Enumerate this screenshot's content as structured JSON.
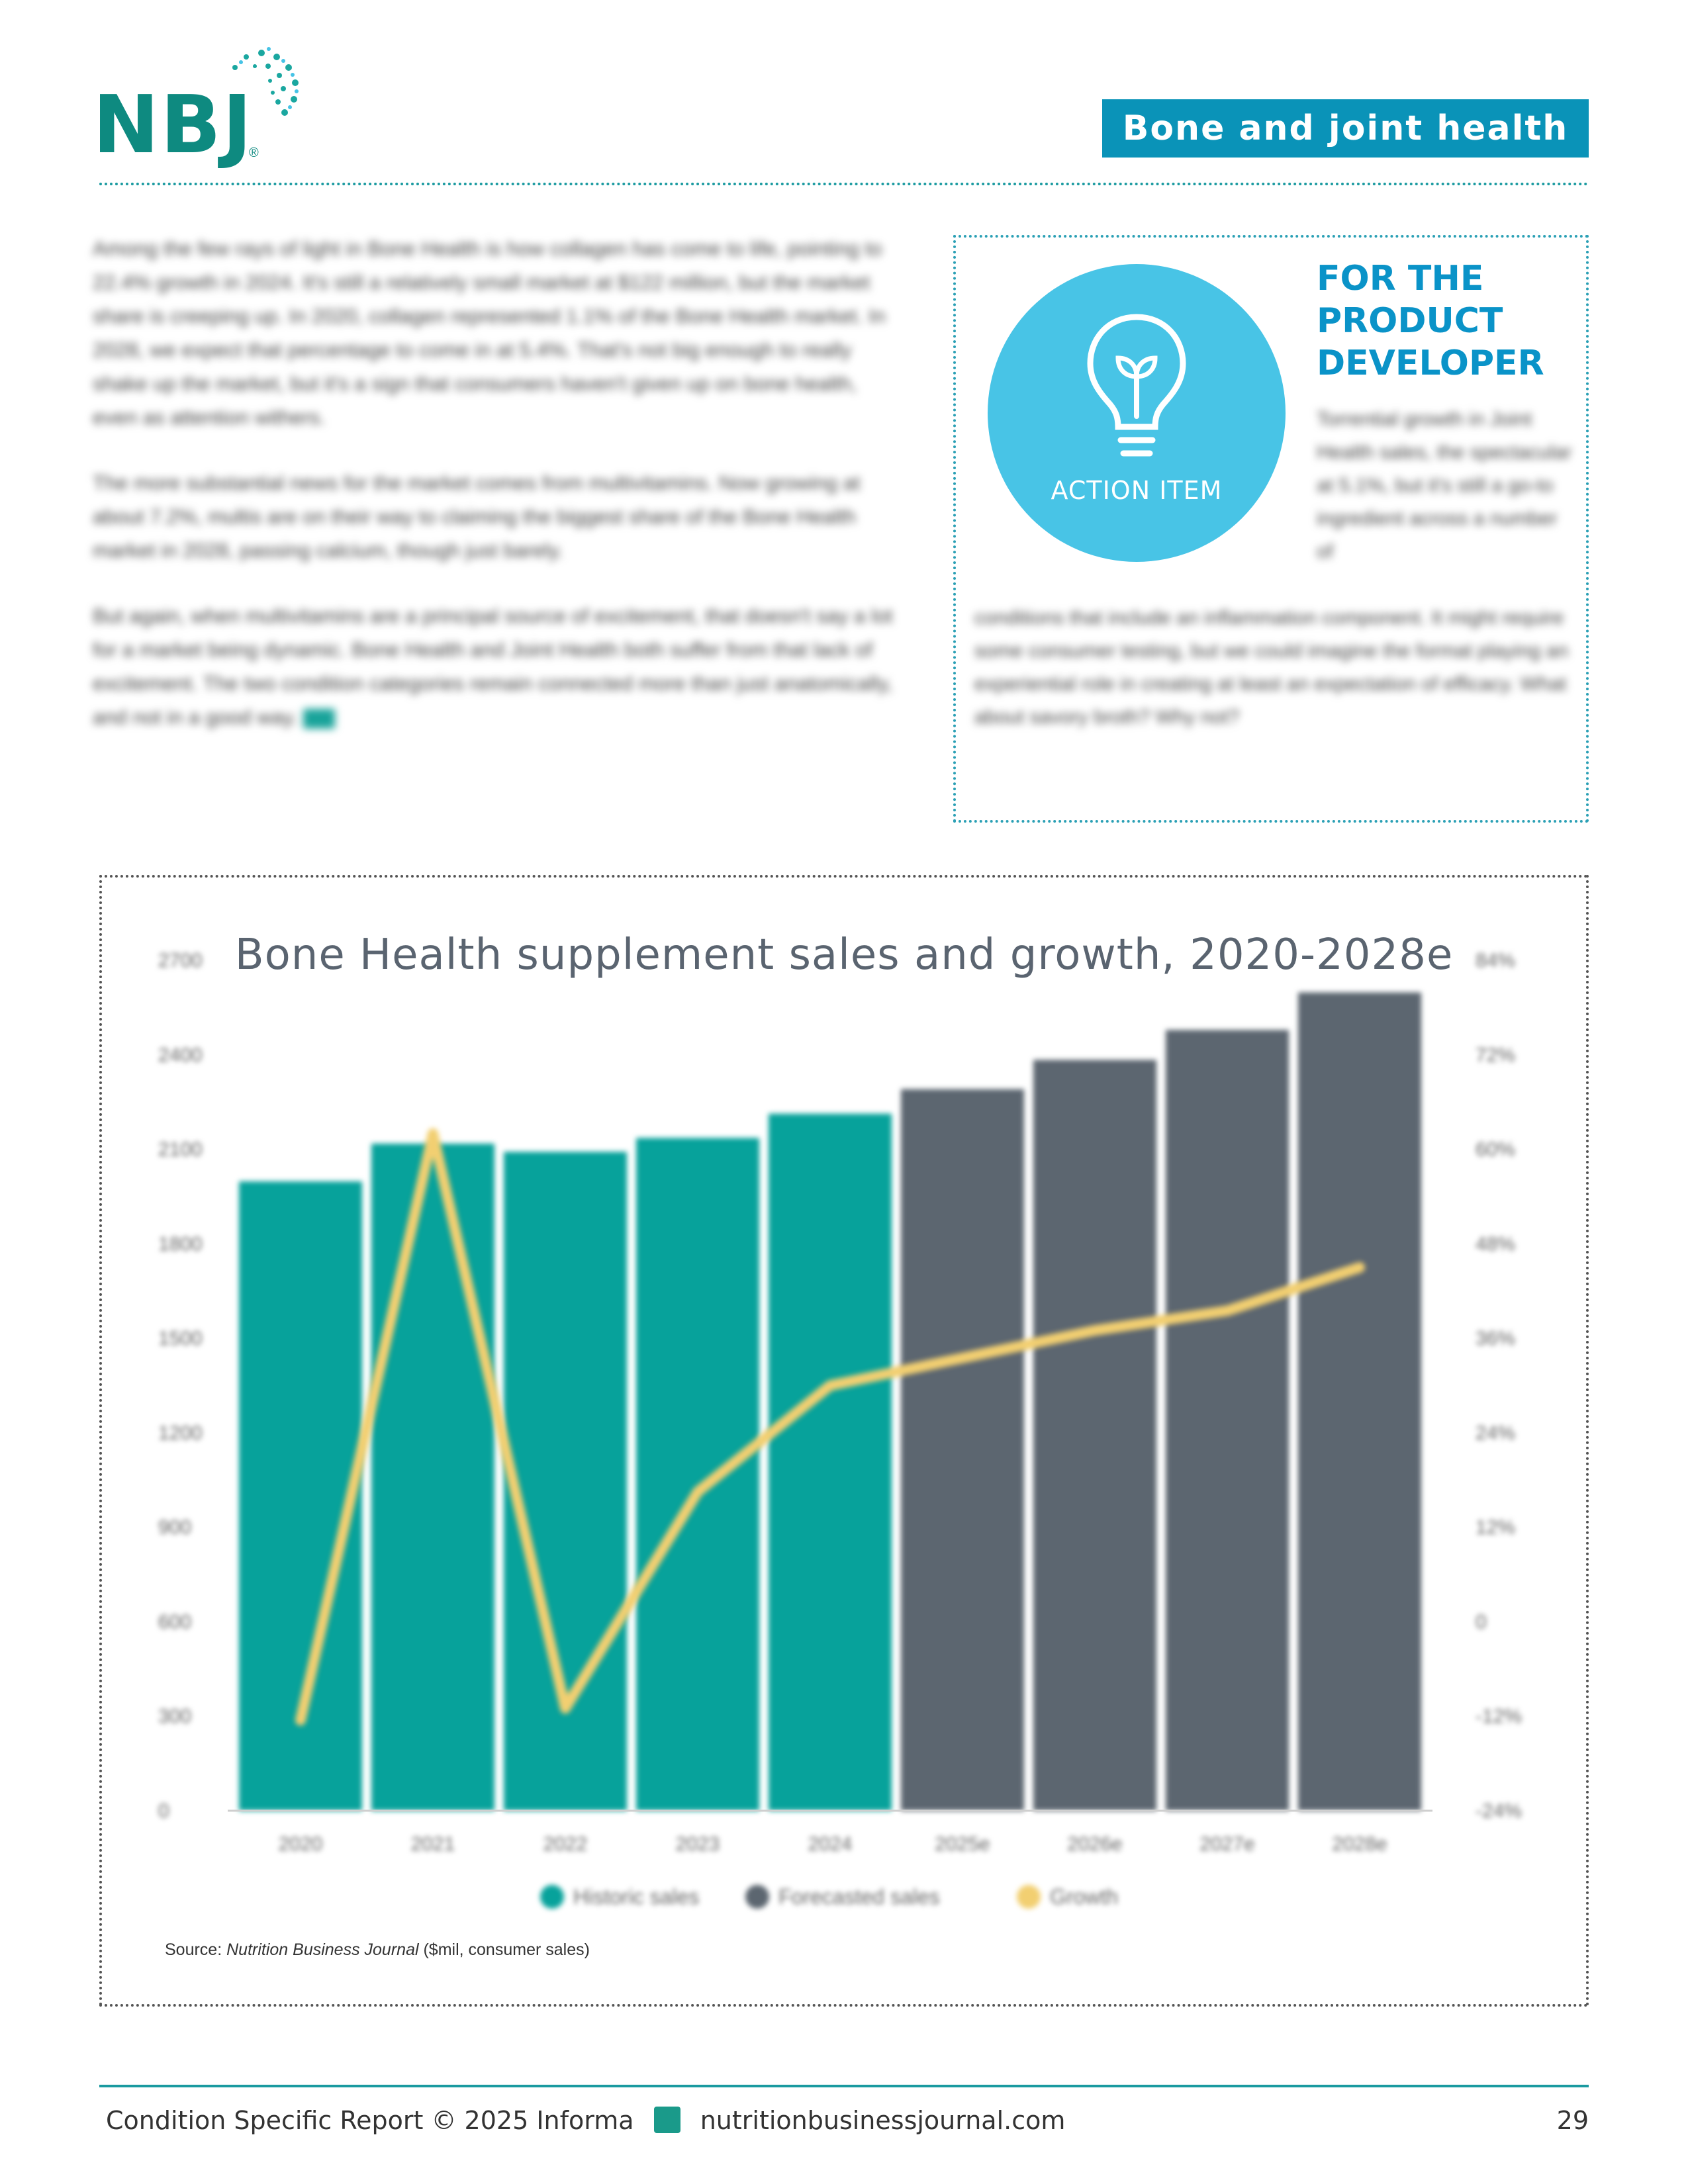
{
  "header": {
    "logo_text": "NBJ",
    "logo_reg": "®",
    "section_badge": "Bone and joint health"
  },
  "article": {
    "paragraphs": [
      "Among the few rays of light in Bone Health is how collagen has come to life, pointing to 22.4% growth in 2024. It's still a relatively small market at $122 million, but the market share is creeping up. In 2020, collagen represented 1.1% of the Bone Health market. In 2028, we expect that percentage to come in at 5.4%. That's not big enough to really shake up the market, but it's a sign that consumers haven't given up on bone health, even as attention withers.",
      "The more substantial news for the market comes from multivitamins. Now growing at about 7.2%, multis are on their way to claiming the biggest share of the Bone Health market in 2028, passing calcium, though just barely.",
      "But again, when multivitamins are a principal source of excitement, that doesn't say a lot for a market being dynamic. Bone Health and Joint Health both suffer from that lack of excitement. The two condition categories remain connected more than just anatomically, and not in a good way."
    ]
  },
  "callout": {
    "action_label": "ACTION ITEM",
    "title_lines": [
      "FOR THE",
      "PRODUCT",
      "DEVELOPER"
    ],
    "text_a": "Torrential growth in Joint Health sales, the spectacular at 5.1%, but it's still a go-to ingredient across a number of",
    "text_b": "conditions that include an inflammation component. It might require some consumer testing, but we could imagine the format playing an experiential role in creating at least an expectation of efficacy. What about savory broth? Why not?"
  },
  "chart_data": {
    "type": "bar",
    "title": "Bone Health supplement sales and growth, 2020-2028e",
    "categories": [
      "2020",
      "2021",
      "2022",
      "2023",
      "2024",
      "2025e",
      "2026e",
      "2027e",
      "2028e"
    ],
    "series": [
      {
        "name": "Historic sales",
        "axis": "left",
        "color": "#07a29b",
        "values": [
          1998,
          2118,
          2092,
          2136,
          2213,
          null,
          null,
          null,
          null
        ]
      },
      {
        "name": "Forecasted sales",
        "axis": "left",
        "color": "#5c6670",
        "values": [
          null,
          null,
          null,
          null,
          null,
          2291,
          2384,
          2479,
          2598
        ]
      },
      {
        "name": "Growth",
        "axis": "right",
        "type": "line",
        "color": "#f2cf71",
        "values": [
          -12.5,
          62.0,
          -11.0,
          16.5,
          30.0,
          33.5,
          37.0,
          39.5,
          45.0
        ]
      }
    ],
    "y_left": {
      "ticks": [
        "2700",
        "2400",
        "2100",
        "1800",
        "1500",
        "1200",
        "900",
        "600",
        "300",
        "0"
      ],
      "ylim": [
        0,
        2700
      ]
    },
    "y_right": {
      "ticks": [
        "84%",
        "72%",
        "60%",
        "48%",
        "36%",
        "24%",
        "12%",
        "0",
        "-12%",
        "-24%"
      ],
      "ylim": [
        -24,
        84
      ]
    },
    "legend": {
      "position": "bottom",
      "entries": [
        "Historic sales",
        "Forecasted sales",
        "Growth"
      ]
    },
    "grid": false,
    "source_prefix": "Source: ",
    "source_name": "Nutrition Business Journal",
    "source_suffix": " ($mil, consumer sales)"
  },
  "footer": {
    "report": "Condition Specific Report",
    "copyright": "© 2025 Informa",
    "website": "nutritionbusinessjournal.com",
    "page_number": "29"
  }
}
